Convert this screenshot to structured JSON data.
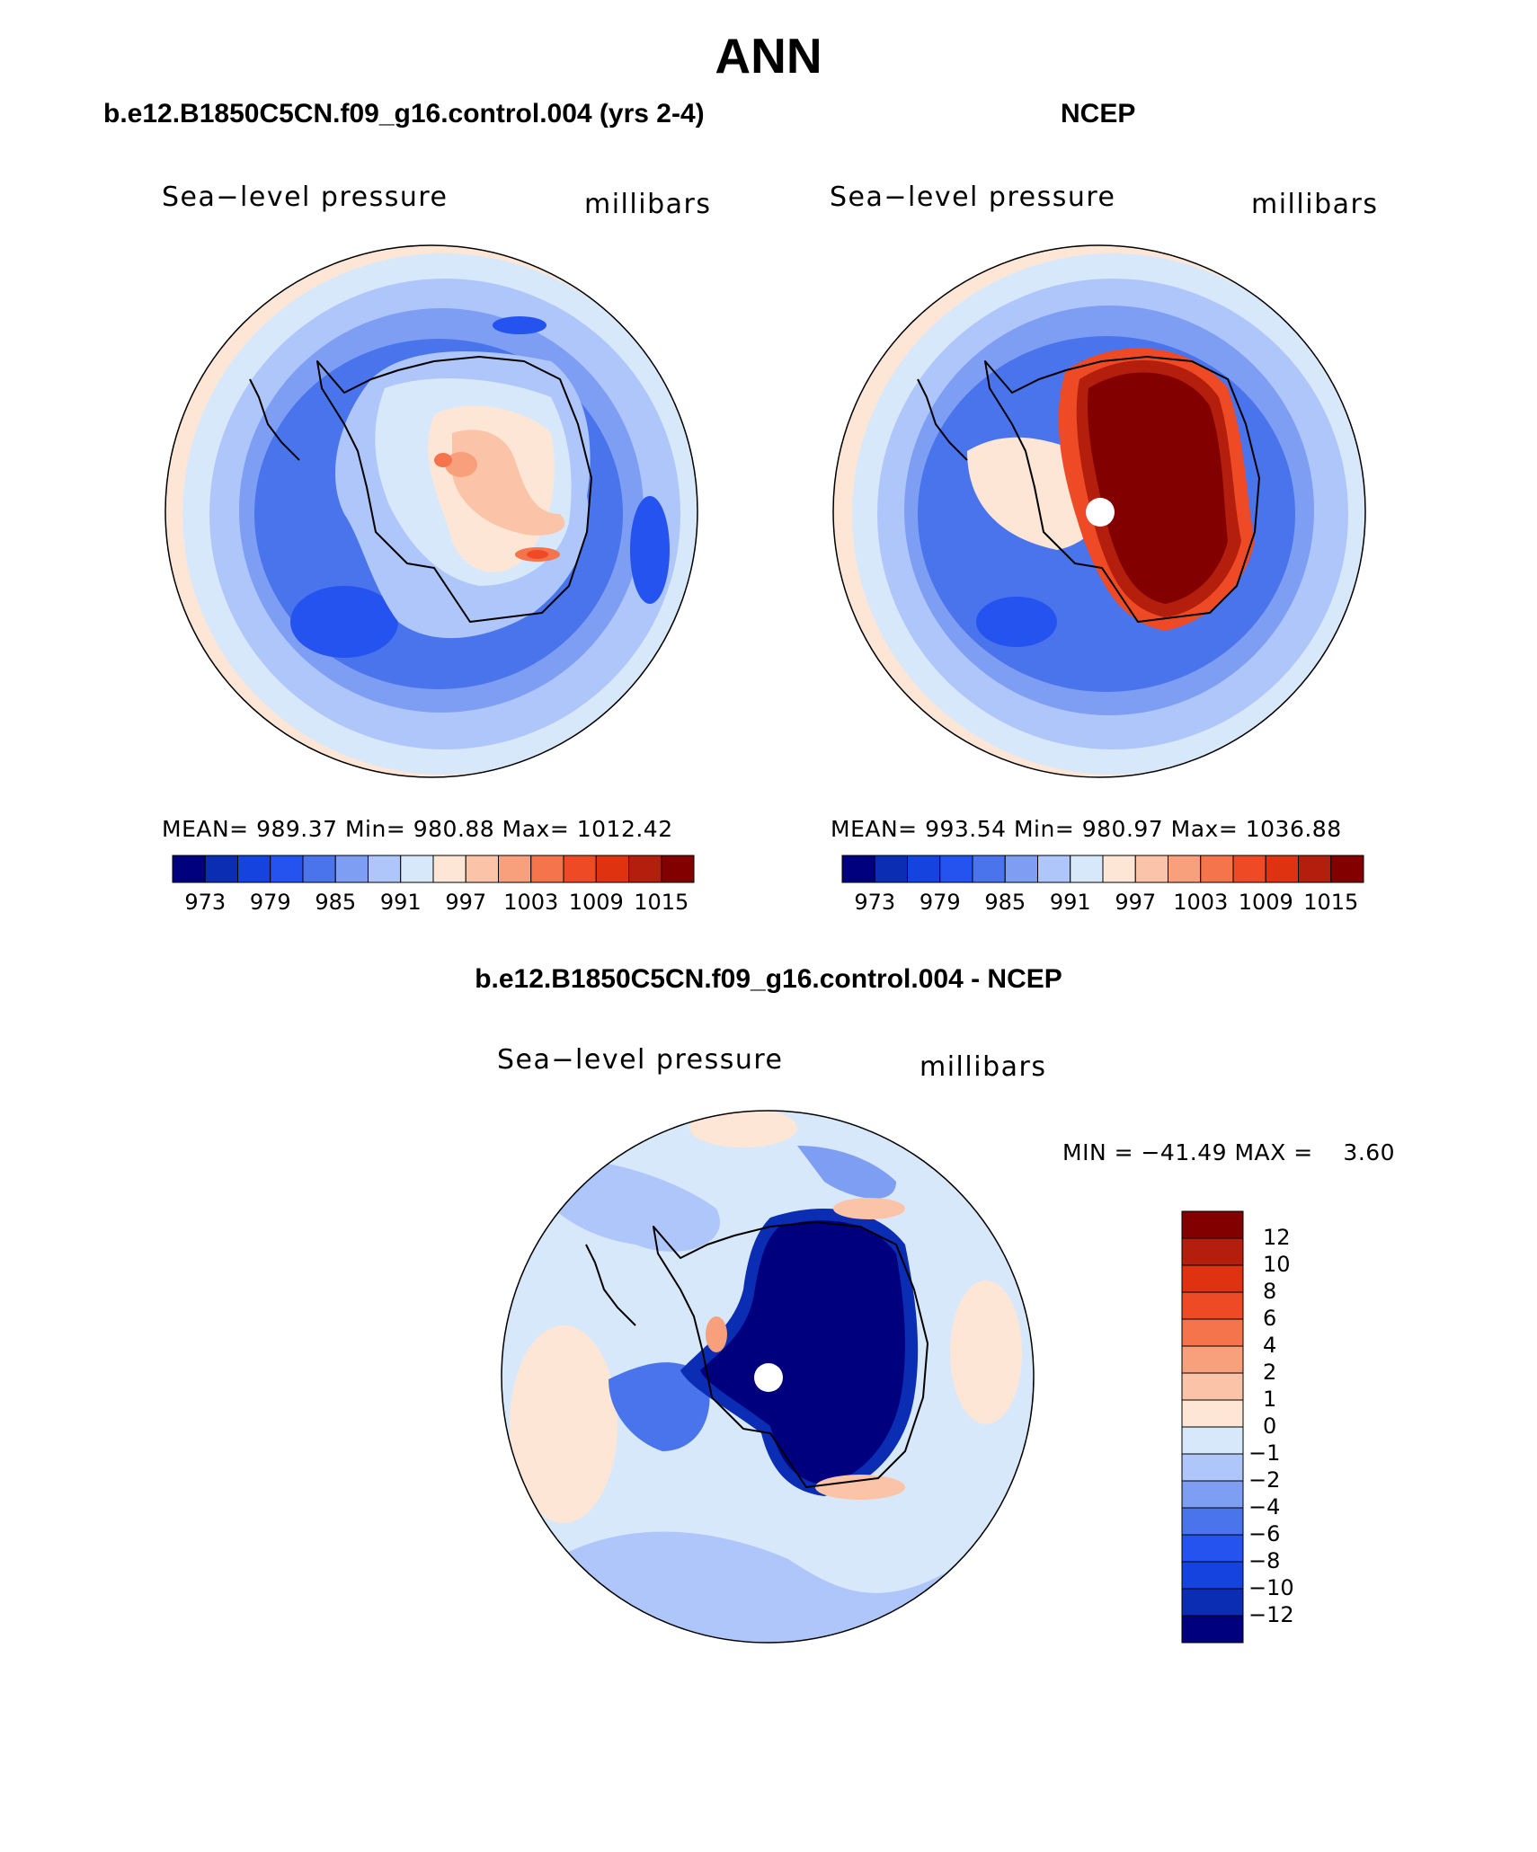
{
  "title": "ANN",
  "chart_data": [
    {
      "type": "heatmap",
      "panel": "model",
      "title": "b.e12.B1850C5CN.f09_g16.control.004 (yrs 2-4)",
      "left_label": "Sea−level pressure",
      "right_label": "millibars",
      "stats_text": "MEAN= 989.37   Min= 980.88   Max= 1012.42",
      "stats": {
        "mean": 989.37,
        "min": 980.88,
        "max": 1012.42
      },
      "colorbar_ticks": [
        "973",
        "979",
        "985",
        "991",
        "997",
        "1003",
        "1009",
        "1015"
      ],
      "colorbar_levels": 16
    },
    {
      "type": "heatmap",
      "panel": "obs",
      "title": "NCEP",
      "left_label": "Sea−level pressure",
      "right_label": "millibars",
      "stats_text": "MEAN= 993.54   Min= 980.97   Max= 1036.88",
      "stats": {
        "mean": 993.54,
        "min": 980.97,
        "max": 1036.88
      },
      "colorbar_ticks": [
        "973",
        "979",
        "985",
        "991",
        "997",
        "1003",
        "1009",
        "1015"
      ],
      "colorbar_levels": 16
    },
    {
      "type": "heatmap",
      "panel": "difference",
      "title": "b.e12.B1850C5CN.f09_g16.control.004 - NCEP",
      "left_label": "Sea−level pressure",
      "right_label": "millibars",
      "minmax_text": "MIN = −41.49 MAX =    3.60",
      "stats": {
        "min": -41.49,
        "max": 3.6
      },
      "colorbar_ticks": [
        "12",
        "10",
        "8",
        "6",
        "4",
        "2",
        "1",
        "0",
        "−1",
        "−2",
        "−4",
        "−6",
        "−8",
        "−10",
        "−12"
      ]
    }
  ],
  "colors": {
    "abs_scale": [
      "#00007f",
      "#0a2db4",
      "#1543e0",
      "#2453f0",
      "#4a74ec",
      "#7d9ef2",
      "#aec6fa",
      "#d8e8fb",
      "#fde6d6",
      "#fbc4a8",
      "#f8a07b",
      "#f5744b",
      "#ee4a26",
      "#de3210",
      "#b41e0c",
      "#820000"
    ],
    "diff_scale": [
      "#820000",
      "#b41e0c",
      "#de3210",
      "#ee4a26",
      "#f5744b",
      "#f8a07b",
      "#fbc4a8",
      "#fde6d6",
      "#d8e8fb",
      "#aec6fa",
      "#7d9ef2",
      "#4a74ec",
      "#2453f0",
      "#1543e0",
      "#0a2db4",
      "#00007f"
    ]
  }
}
